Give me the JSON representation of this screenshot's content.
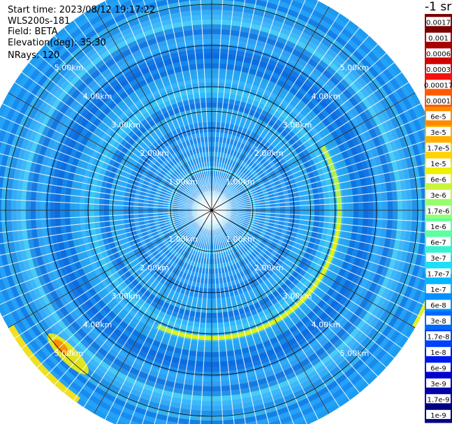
{
  "info": {
    "start_time": "Start time: 2023/08/12 19:17:22",
    "instrument": "WLS200s-181",
    "field": "Field: BETA",
    "elevation": "Elevation(deg): 35.30",
    "nrays": "NRays: 120"
  },
  "colorbar": {
    "title": "-1 sr",
    "labels": [
      "0.0017",
      "0.001",
      "0.0006",
      "0.0003",
      "0.00017",
      "0.0001",
      "6e-5",
      "3e-5",
      "1.7e-5",
      "1e-5",
      "6e-6",
      "3e-6",
      "1.7e-6",
      "1e-6",
      "6e-7",
      "3e-7",
      "1.7e-7",
      "1e-7",
      "6e-8",
      "3e-8",
      "1.7e-8",
      "1e-8",
      "6e-9",
      "3e-9",
      "1.7e-9",
      "1e-9"
    ],
    "colors": [
      "#7a0000",
      "#a80000",
      "#d40000",
      "#f51010",
      "#ff5a00",
      "#ff8a00",
      "#ffb000",
      "#ffd200",
      "#eef000",
      "#c8f53a",
      "#96ff6e",
      "#5effa0",
      "#3af0d0",
      "#1ae0f5",
      "#00b8ff",
      "#0090ff",
      "#0068ff",
      "#0040ff",
      "#0018f0",
      "#0000d0",
      "#0000a8",
      "#000080"
    ]
  },
  "chart_data": {
    "type": "heatmap",
    "projection": "polar-ppi",
    "field": "BETA",
    "n_rays": 120,
    "elevation_deg": 35.3,
    "range_rings_km": [
      1.0,
      2.0,
      3.0,
      4.0,
      5.0
    ],
    "ring_labels": [
      "1.00km",
      "2.00km",
      "3.00km",
      "4.00km",
      "5.00km"
    ],
    "max_range_km": 5.7,
    "spoke_angles_deg": [
      0,
      30,
      60,
      90,
      120,
      150,
      180,
      210,
      240,
      270,
      300,
      330
    ],
    "background_level": "1e-7",
    "enhanced_ring_km": 3.1,
    "enhanced_ring_level": "1.7e-5",
    "hotspot": {
      "bearing_deg": 225,
      "range_km": 5.6,
      "level": "3e-5"
    }
  }
}
